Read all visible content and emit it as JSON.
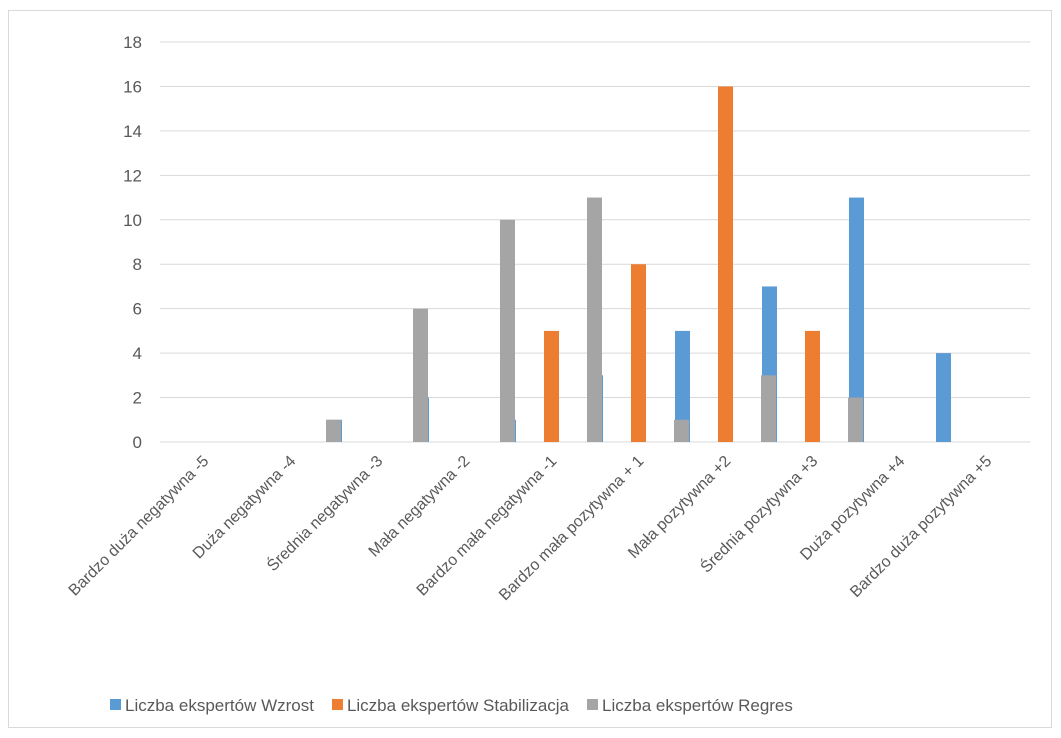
{
  "chart_data": {
    "type": "bar",
    "title": "",
    "xlabel": "",
    "ylabel": "",
    "ylim": [
      0,
      18
    ],
    "yticks": [
      0,
      2,
      4,
      6,
      8,
      10,
      12,
      14,
      16,
      18
    ],
    "grid": true,
    "legend_position": "bottom",
    "categories": [
      "Bardzo duża negatywna -5",
      "Duża negatywna -4",
      "Średnia negatywna -3",
      "Mała negatywna -2",
      "Bardzo mała negatywna -1",
      "Bardzo mała pozytywna + 1",
      "Mała pozytywna +2",
      "Średnia pozytywna +3",
      "Duża pozytywna +4",
      "Bardzo duża pozytywna +5"
    ],
    "series": [
      {
        "name": "Liczba ekspertów Wzrost",
        "color": "#5b9bd5",
        "values": [
          0,
          0,
          1,
          2,
          1,
          3,
          5,
          7,
          11,
          4
        ]
      },
      {
        "name": "Liczba ekspertów Stabilizacja",
        "color": "#ed7d31",
        "values": [
          0,
          0,
          0,
          0,
          5,
          8,
          16,
          5,
          0,
          0
        ]
      },
      {
        "name": "Liczba ekspertów Regres",
        "color": "#a5a5a5",
        "values": [
          0,
          1,
          6,
          10,
          11,
          1,
          3,
          2,
          0,
          0
        ]
      }
    ]
  }
}
